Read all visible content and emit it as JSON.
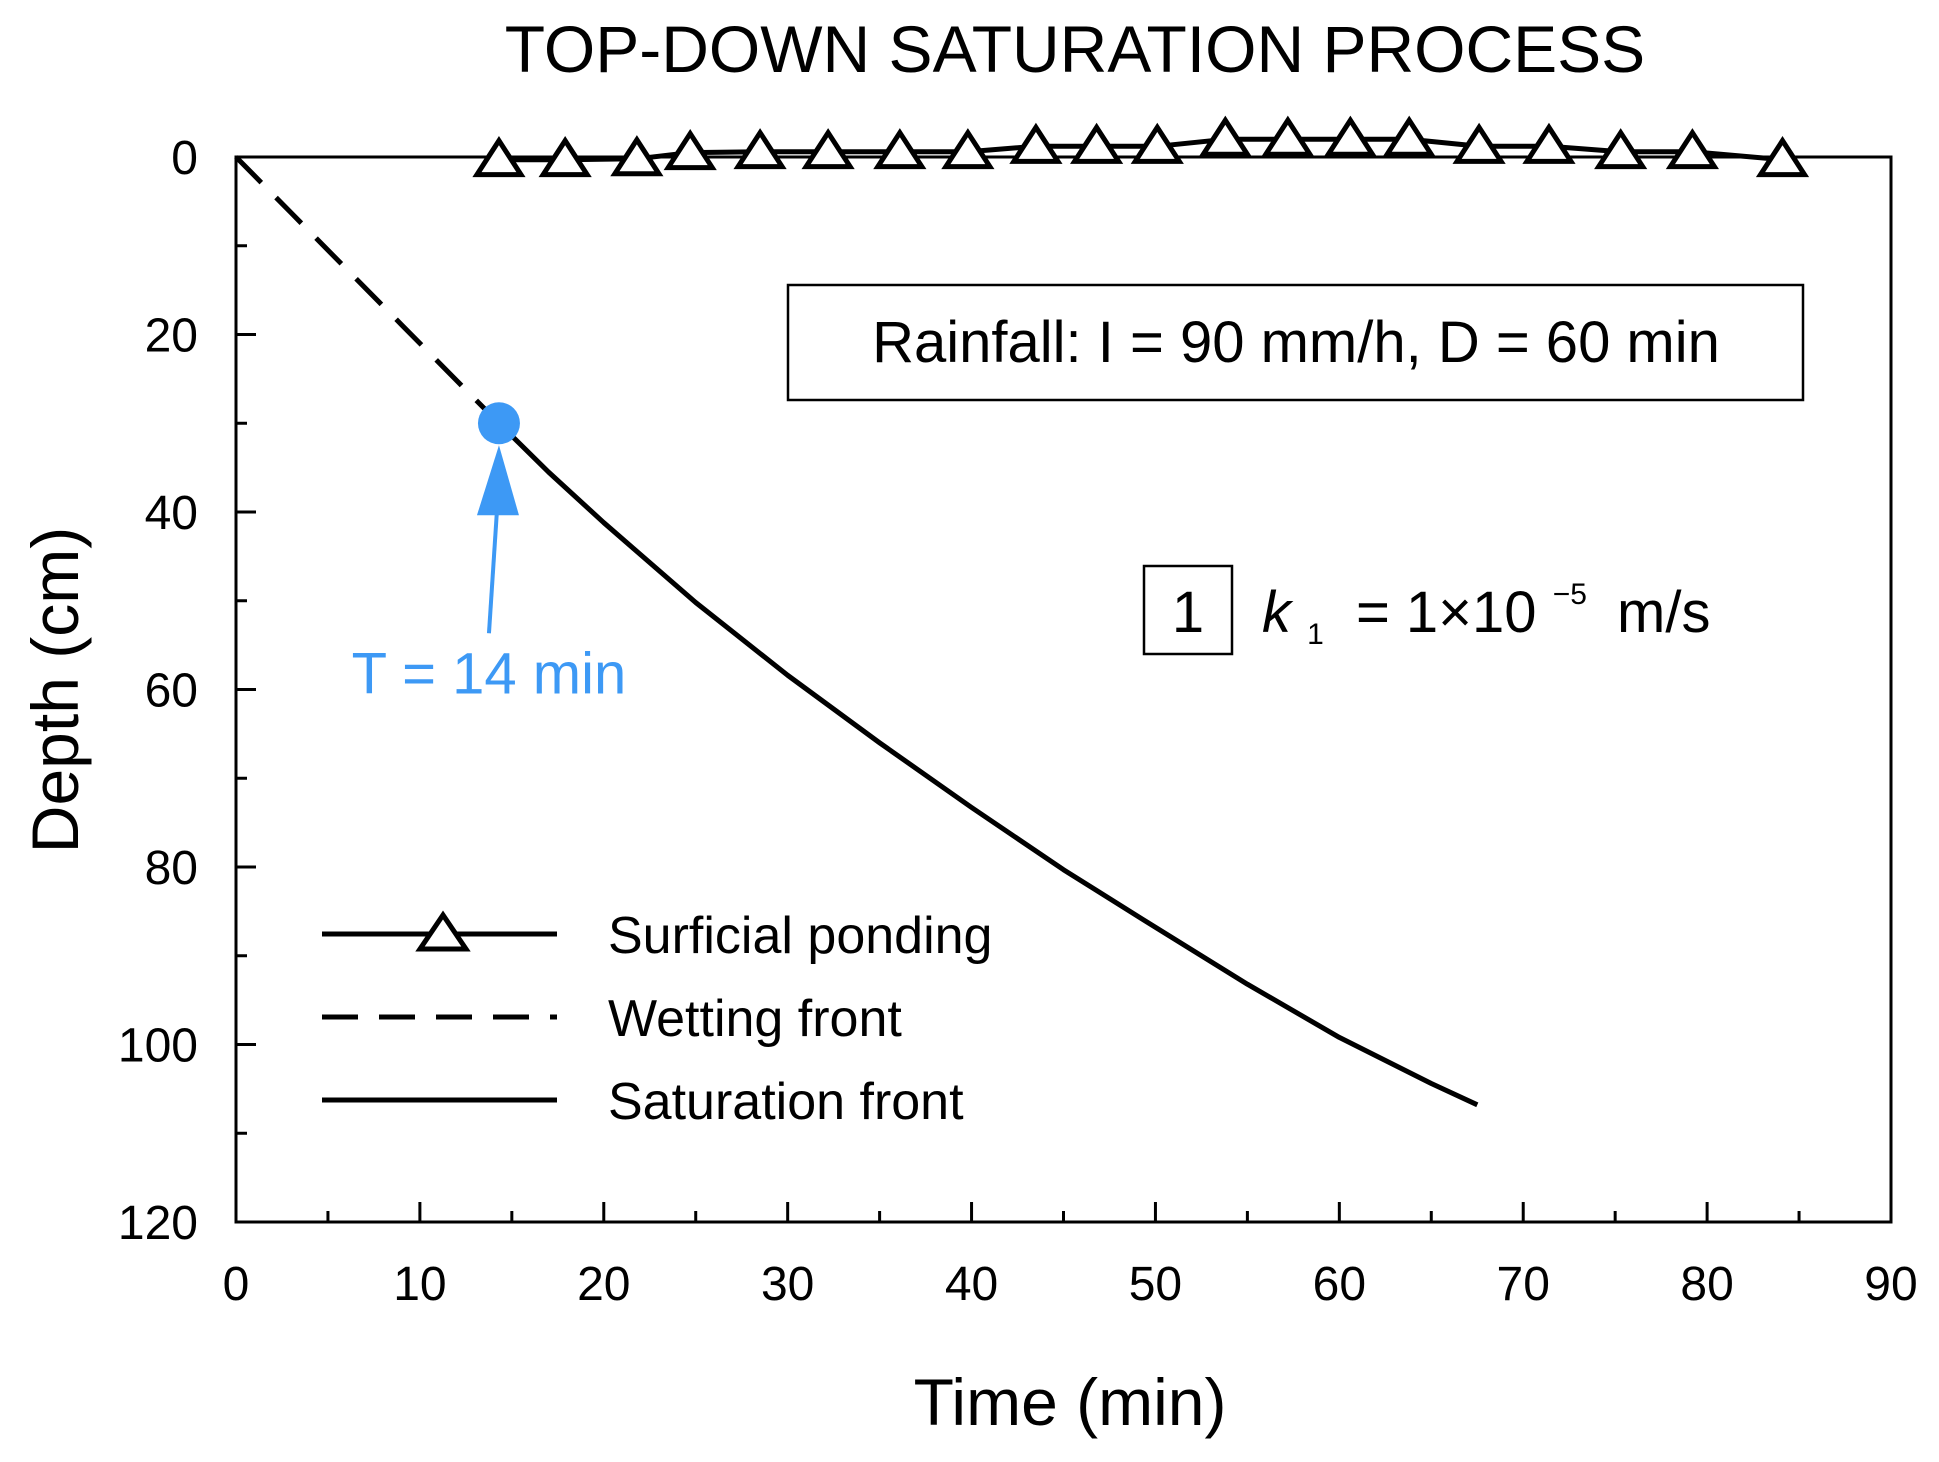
{
  "colors": {
    "axis": "#000000",
    "series": "#000000",
    "highlight": "#3d99f5"
  },
  "chart_data": {
    "type": "line",
    "title": "TOP-DOWN SATURATION PROCESS",
    "xlabel": "Time (min)",
    "ylabel": "Depth (cm)",
    "xlim": [
      0,
      90
    ],
    "ylim": [
      0,
      120
    ],
    "y_inverted": true,
    "grid": false,
    "x_ticks": [
      0,
      10,
      20,
      30,
      40,
      50,
      60,
      70,
      80,
      90
    ],
    "x_minor_step": 5,
    "y_ticks": [
      0,
      20,
      40,
      60,
      80,
      100,
      120
    ],
    "y_minor_step": 10,
    "legend_position": "bottom-left",
    "series": [
      {
        "name": "Surficial ponding",
        "style": "solid-triangle-markers",
        "x": [
          14.3,
          17.9,
          21.8,
          24.7,
          28.5,
          32.2,
          36.1,
          39.8,
          43.5,
          46.8,
          50.1,
          53.8,
          57.2,
          60.6,
          63.8,
          67.6,
          71.4,
          75.3,
          79.2,
          84.1
        ],
        "y": [
          0.3,
          0.3,
          0.2,
          -0.5,
          -0.6,
          -0.6,
          -0.6,
          -0.6,
          -1.2,
          -1.2,
          -1.2,
          -2.0,
          -2.0,
          -2.0,
          -2.0,
          -1.2,
          -1.2,
          -0.6,
          -0.6,
          0.3
        ]
      },
      {
        "name": "Wetting front",
        "style": "dashed",
        "x": [
          0,
          3,
          6,
          9,
          12,
          14.3
        ],
        "y": [
          0,
          6.3,
          12.6,
          18.9,
          25.2,
          30
        ]
      },
      {
        "name": "Saturation front",
        "style": "solid",
        "x": [
          14.3,
          17,
          20,
          25,
          30,
          35,
          40,
          45,
          50,
          55,
          60,
          65,
          67.5
        ],
        "y": [
          30,
          35.5,
          41.2,
          50.2,
          58.4,
          66,
          73.3,
          80.3,
          86.8,
          93.2,
          99.2,
          104.4,
          106.8
        ]
      }
    ],
    "annotations": {
      "rainfall": "Rainfall: I = 90 mm/h, D = 60 min",
      "case_number": "1",
      "k_symbol": "k",
      "k_subscript": "1",
      "k_equals": "= 1×10",
      "k_exponent": "−5",
      "k_unit": "m/s",
      "saturation_time": {
        "label": "T = 14 min",
        "x": 14.3,
        "y": 30
      }
    }
  }
}
